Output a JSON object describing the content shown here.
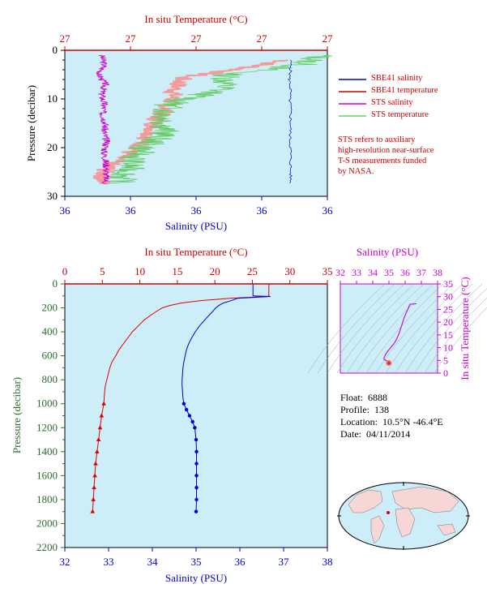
{
  "chart_data": [
    {
      "type": "line",
      "title": "",
      "top_axis": {
        "label": "In situ Temperature (°C)",
        "ticks": [
          "27",
          "27",
          "27",
          "27",
          "27"
        ]
      },
      "bottom_axis": {
        "label": "Salinity (PSU)",
        "ticks": [
          "36",
          "36",
          "36",
          "36",
          "36"
        ]
      },
      "ylabel": "Pressure (decibar)",
      "ylim": [
        30,
        0
      ],
      "yticks": [
        "0",
        "10",
        "20",
        "30"
      ],
      "legend": "right",
      "series": [
        {
          "name": "SBE41 salinity",
          "color": "#0000cc",
          "x_frac": [
            0.86,
            0.86,
            0.855,
            0.86,
            0.857,
            0.86,
            0.86,
            0.858,
            0.86,
            0.86,
            0.86
          ],
          "pressure": [
            2,
            4,
            6,
            8,
            10,
            12,
            15,
            18,
            21,
            24,
            27.5
          ]
        },
        {
          "name": "SBE41 temperature",
          "color": "#cc0000"
        },
        {
          "name": "STS salinity",
          "color": "#cc00cc",
          "x_frac": [
            0.14,
            0.15,
            0.13,
            0.155,
            0.14,
            0.15,
            0.145,
            0.155,
            0.15,
            0.16,
            0.15,
            0.16,
            0.155
          ],
          "pressure": [
            1,
            3,
            5,
            7,
            9,
            11,
            13,
            15,
            17,
            19,
            21,
            24,
            27.5
          ]
        },
        {
          "name": "STS temperature",
          "color": "#66cc66",
          "x_frac": [
            0.98,
            0.9,
            0.62,
            0.6,
            0.4,
            0.38,
            0.38,
            0.3,
            0.25,
            0.24,
            0.2
          ],
          "pressure": [
            1,
            3,
            5,
            8,
            11,
            14,
            17,
            20,
            23,
            25,
            27.5
          ]
        }
      ],
      "sts_temperature_pink_x_frac": [
        0.85,
        0.65,
        0.45,
        0.42,
        0.4,
        0.35,
        0.33,
        0.28,
        0.18,
        0.15,
        0.14
      ],
      "sts_temperature_pink_pressure": [
        2,
        4,
        5.5,
        8,
        11,
        14,
        17,
        20,
        23,
        25,
        27.5
      ]
    },
    {
      "type": "line",
      "title": "",
      "top_axis": {
        "label": "In situ Temperature (°C)",
        "ticks": [
          "0",
          "5",
          "10",
          "15",
          "20",
          "25",
          "30",
          "35"
        ],
        "range": [
          0,
          35
        ]
      },
      "bottom_axis": {
        "label": "Salinity (PSU)",
        "ticks": [
          "32",
          "33",
          "34",
          "35",
          "36",
          "37",
          "38"
        ],
        "range": [
          32,
          38
        ]
      },
      "ylabel": "Pressure (decibar)",
      "ylim": [
        2200,
        0
      ],
      "yticks": [
        "0",
        "200",
        "400",
        "600",
        "800",
        "1000",
        "1200",
        "1400",
        "1600",
        "1800",
        "2000",
        "2200"
      ],
      "series": [
        {
          "name": "temperature",
          "color": "#dd0000",
          "pressure": [
            5,
            20,
            100,
            105,
            120,
            140,
            160,
            180,
            200,
            230,
            260,
            300,
            350,
            400,
            450,
            500,
            550,
            600,
            650,
            700,
            750,
            800,
            850,
            900,
            950,
            1000,
            1100,
            1200,
            1300,
            1400,
            1500,
            1600,
            1700,
            1800,
            1900
          ],
          "values": [
            27.2,
            27.2,
            27.2,
            27.0,
            22,
            18,
            15.5,
            14,
            13,
            12.2,
            11.5,
            10.6,
            9.8,
            9.0,
            8.4,
            7.8,
            7.2,
            6.8,
            6.3,
            6.0,
            5.8,
            5.6,
            5.4,
            5.3,
            5.25,
            5.2,
            4.9,
            4.7,
            4.5,
            4.3,
            4.1,
            4.0,
            3.9,
            3.8,
            3.7
          ]
        },
        {
          "name": "salinity",
          "color": "#0000cc",
          "pressure": [
            5,
            60,
            100,
            105,
            120,
            140,
            160,
            180,
            200,
            230,
            260,
            300,
            350,
            400,
            450,
            500,
            550,
            600,
            650,
            700,
            750,
            800,
            850,
            900,
            950,
            1000,
            1050,
            1100,
            1150,
            1200,
            1300,
            1400,
            1500,
            1600,
            1700,
            1800,
            1900
          ],
          "values": [
            36.3,
            36.3,
            36.3,
            36.7,
            35.95,
            35.8,
            35.62,
            35.52,
            35.45,
            35.38,
            35.3,
            35.2,
            35.08,
            34.98,
            34.9,
            34.83,
            34.78,
            34.75,
            34.72,
            34.7,
            34.69,
            34.68,
            34.68,
            34.69,
            34.7,
            34.72,
            34.78,
            34.85,
            34.92,
            34.97,
            35.0,
            35.01,
            35.01,
            35.01,
            35.01,
            35.01,
            35.0
          ]
        }
      ]
    },
    {
      "type": "line",
      "title": "",
      "top_axis": {
        "label": "Salinity (PSU)",
        "ticks": [
          "32",
          "33",
          "34",
          "35",
          "36",
          "37",
          "38"
        ],
        "range": [
          32,
          38
        ]
      },
      "right_axis": {
        "label": "In situ Temperature (°C)",
        "ticks": [
          "0",
          "5",
          "10",
          "15",
          "20",
          "25",
          "30",
          "35"
        ],
        "range": [
          0,
          35
        ]
      },
      "series": [
        {
          "name": "T-S",
          "color": "#cc00cc",
          "salinity": [
            36.7,
            36.3,
            35.95,
            35.62,
            35.45,
            35.3,
            35.08,
            34.9,
            34.78,
            34.72,
            34.69,
            34.7,
            34.85,
            35.0,
            35.01,
            35.0
          ],
          "temperature": [
            27.2,
            27.0,
            22,
            15.5,
            13,
            11.5,
            9.8,
            8.4,
            7.2,
            6.3,
            5.8,
            5.3,
            4.9,
            4.5,
            4.1,
            3.7
          ]
        }
      ]
    }
  ],
  "legend": {
    "sbe_sal": "SBE41 salinity",
    "sbe_temp": "SBE41 temperature",
    "sts_sal": "STS salinity",
    "sts_temp": "STS temperature"
  },
  "note": {
    "line1": "STS refers to auxiliary",
    "line2": "high-resolution near-surface",
    "line3": "T-S measurements funded",
    "line4": "by NASA."
  },
  "info": {
    "float_label": "Float:",
    "float": "6888",
    "profile_label": "Profile:",
    "profile": "138",
    "location_label": "Location:",
    "location": "10.5°N  -46.4°E",
    "date_label": "Date:",
    "date": "04/11/2014"
  },
  "colors": {
    "plot_bg": "#cdeef8",
    "temperature": "#dd0000",
    "salinity": "#0000cc",
    "sts_salinity": "#cc00cc",
    "sts_temperature": "#66cc66",
    "pink": "#f59a9a",
    "purple": "#cc00cc",
    "green_axis": "#2e6b2e"
  }
}
